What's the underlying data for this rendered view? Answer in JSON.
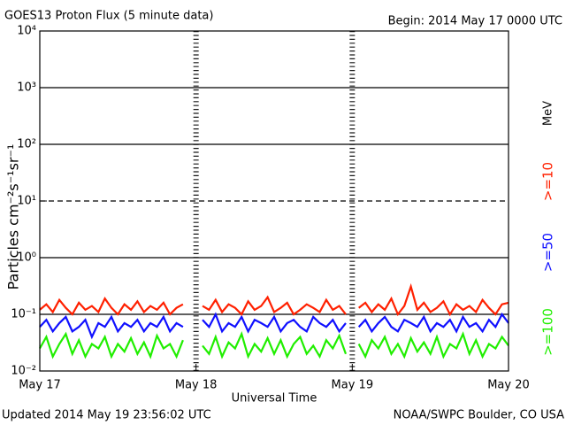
{
  "chart_data": {
    "type": "line",
    "title": "GOES13 Proton Flux (5 minute data)",
    "subtitle": "Begin: 2014 May 17 0000 UTC",
    "x_label": "Universal Time",
    "y_label": "Particles cm⁻²s⁻¹sr⁻¹",
    "footer_left": "Updated 2014 May 19 23:56:02 UTC",
    "footer_right": "NOAA/SWPC Boulder, CO USA",
    "legend_unit": "MeV",
    "log_y": true,
    "grid": true,
    "threshold": 10,
    "xlim": [
      0,
      72
    ],
    "xticks": [
      {
        "value": 0,
        "label": "May 17"
      },
      {
        "value": 24,
        "label": "May 18"
      },
      {
        "value": 48,
        "label": "May 19"
      },
      {
        "value": 72,
        "label": "May 20"
      }
    ],
    "ylim": [
      0.01,
      10000
    ],
    "yticks": [
      {
        "value": 0.01,
        "label": "10⁻²"
      },
      {
        "value": 0.1,
        "label": "10⁻¹"
      },
      {
        "value": 1,
        "label": "10⁰"
      },
      {
        "value": 10,
        "label": "10¹"
      },
      {
        "value": 100,
        "label": "10²"
      },
      {
        "value": 1000,
        "label": "10³"
      },
      {
        "value": 10000,
        "label": "10⁴"
      }
    ],
    "x": [
      0,
      1,
      2,
      3,
      4,
      5,
      6,
      7,
      8,
      9,
      10,
      11,
      12,
      13,
      14,
      15,
      16,
      17,
      18,
      19,
      20,
      21,
      22,
      23,
      24,
      25,
      26,
      27,
      28,
      29,
      30,
      31,
      32,
      33,
      34,
      35,
      36,
      37,
      38,
      39,
      40,
      41,
      42,
      43,
      44,
      45,
      46,
      47,
      48,
      49,
      50,
      51,
      52,
      53,
      54,
      55,
      56,
      57,
      58,
      59,
      60,
      61,
      62,
      63,
      64,
      65,
      66,
      67,
      68,
      69,
      70,
      71,
      72
    ],
    "series": [
      {
        "name": ">=10",
        "color": "#ff2000",
        "values": [
          0.12,
          0.15,
          0.11,
          0.18,
          0.13,
          0.1,
          0.16,
          0.12,
          0.14,
          0.11,
          0.19,
          0.13,
          0.1,
          0.15,
          0.12,
          0.17,
          0.11,
          0.14,
          0.12,
          0.16,
          0.1,
          0.13,
          0.15,
          null,
          null,
          0.14,
          0.12,
          0.18,
          0.11,
          0.15,
          0.13,
          0.1,
          0.17,
          0.12,
          0.14,
          0.2,
          0.11,
          0.13,
          0.16,
          0.1,
          0.12,
          0.15,
          0.13,
          0.11,
          0.18,
          0.12,
          0.14,
          0.1,
          null,
          0.13,
          0.16,
          0.11,
          0.15,
          0.12,
          0.19,
          0.1,
          0.14,
          0.31,
          0.12,
          0.16,
          0.11,
          0.13,
          0.17,
          0.1,
          0.15,
          0.12,
          0.14,
          0.11,
          0.18,
          0.13,
          0.1,
          0.15,
          0.16
        ]
      },
      {
        "name": ">=50",
        "color": "#1010ff",
        "values": [
          0.06,
          0.08,
          0.05,
          0.07,
          0.09,
          0.05,
          0.06,
          0.08,
          0.04,
          0.07,
          0.06,
          0.09,
          0.05,
          0.07,
          0.06,
          0.08,
          0.05,
          0.07,
          0.06,
          0.09,
          0.05,
          0.07,
          0.06,
          null,
          null,
          0.08,
          0.06,
          0.1,
          0.05,
          0.07,
          0.06,
          0.09,
          0.05,
          0.08,
          0.07,
          0.06,
          0.09,
          0.05,
          0.07,
          0.08,
          0.06,
          0.05,
          0.09,
          0.07,
          0.06,
          0.08,
          0.05,
          0.07,
          null,
          0.06,
          0.08,
          0.05,
          0.07,
          0.09,
          0.06,
          0.05,
          0.08,
          0.07,
          0.06,
          0.09,
          0.05,
          0.07,
          0.06,
          0.08,
          0.05,
          0.09,
          0.06,
          0.07,
          0.05,
          0.08,
          0.06,
          0.1,
          0.07
        ]
      },
      {
        "name": ">=100",
        "color": "#20ee00",
        "values": [
          0.025,
          0.04,
          0.018,
          0.03,
          0.045,
          0.02,
          0.035,
          0.018,
          0.03,
          0.025,
          0.04,
          0.018,
          0.03,
          0.022,
          0.038,
          0.02,
          0.032,
          0.018,
          0.042,
          0.025,
          0.03,
          0.018,
          0.035,
          null,
          null,
          0.028,
          0.02,
          0.04,
          0.018,
          0.032,
          0.025,
          0.045,
          0.018,
          0.03,
          0.022,
          0.038,
          0.02,
          0.035,
          0.018,
          0.03,
          0.04,
          0.02,
          0.028,
          0.018,
          0.035,
          0.025,
          0.042,
          0.02,
          null,
          0.03,
          0.018,
          0.035,
          0.025,
          0.04,
          0.02,
          0.03,
          0.018,
          0.038,
          0.022,
          0.032,
          0.02,
          0.04,
          0.018,
          0.03,
          0.025,
          0.045,
          0.02,
          0.035,
          0.018,
          0.03,
          0.025,
          0.04,
          0.028
        ]
      }
    ]
  }
}
